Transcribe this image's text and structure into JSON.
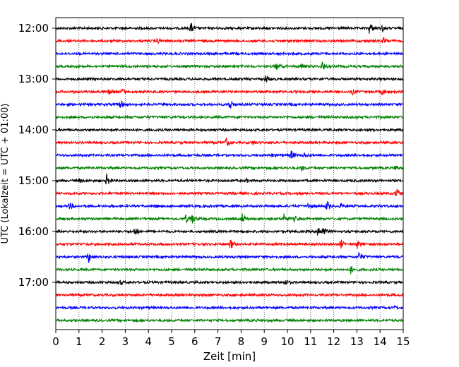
{
  "chart_data": {
    "type": "line",
    "title": "",
    "xlabel": "Zeit  [min]",
    "ylabel": "UTC (Lokalzeit = UTC + 01:00)",
    "xlim": [
      0,
      15
    ],
    "x_ticks": [
      0,
      1,
      2,
      3,
      4,
      5,
      6,
      7,
      8,
      9,
      10,
      11,
      12,
      13,
      14,
      15
    ],
    "x_tick_labels": [
      "0",
      "1",
      "2",
      "3",
      "4",
      "5",
      "6",
      "7",
      "8",
      "9",
      "10",
      "11",
      "12",
      "13",
      "14",
      "15"
    ],
    "y_tick_labels": [
      "12:00",
      "13:00",
      "14:00",
      "15:00",
      "16:00",
      "17:00"
    ],
    "y_tick_traces": [
      0,
      4,
      8,
      12,
      16,
      20
    ],
    "grid": "vertical-dotted",
    "colors": [
      "#000000",
      "#ff0000",
      "#0000ff",
      "#008000"
    ],
    "traces": [
      {
        "start": "12:00",
        "color": "#000000",
        "events": [
          {
            "t": 5.82,
            "amp": 1.0
          },
          {
            "t": 13.55,
            "amp": 1.1
          },
          {
            "t": 14.1,
            "amp": 0.5
          }
        ]
      },
      {
        "start": "12:15",
        "color": "#ff0000",
        "events": [
          {
            "t": 4.4,
            "amp": 0.4
          },
          {
            "t": 14.15,
            "amp": 0.55
          }
        ]
      },
      {
        "start": "12:30",
        "color": "#0000ff",
        "events": []
      },
      {
        "start": "12:45",
        "color": "#008000",
        "events": [
          {
            "t": 9.5,
            "amp": 0.7
          },
          {
            "t": 10.6,
            "amp": 0.4
          },
          {
            "t": 11.5,
            "amp": 0.9
          }
        ]
      },
      {
        "start": "13:00",
        "color": "#000000",
        "events": [
          {
            "t": 9.05,
            "amp": 0.8
          }
        ]
      },
      {
        "start": "13:15",
        "color": "#ff0000",
        "events": [
          {
            "t": 2.3,
            "amp": 0.4
          },
          {
            "t": 2.85,
            "amp": 0.6
          },
          {
            "t": 12.8,
            "amp": 0.4
          },
          {
            "t": 14.1,
            "amp": 0.5
          }
        ]
      },
      {
        "start": "13:30",
        "color": "#0000ff",
        "events": [
          {
            "t": 2.8,
            "amp": 0.8
          },
          {
            "t": 7.5,
            "amp": 1.0
          }
        ]
      },
      {
        "start": "13:45",
        "color": "#008000",
        "events": []
      },
      {
        "start": "14:00",
        "color": "#000000",
        "events": []
      },
      {
        "start": "14:15",
        "color": "#ff0000",
        "events": [
          {
            "t": 7.35,
            "amp": 0.8
          },
          {
            "t": 8.5,
            "amp": 0.3
          }
        ]
      },
      {
        "start": "14:30",
        "color": "#0000ff",
        "events": [
          {
            "t": 9.3,
            "amp": 0.3
          },
          {
            "t": 10.15,
            "amp": 0.9
          },
          {
            "t": 10.7,
            "amp": 0.5
          }
        ]
      },
      {
        "start": "14:45",
        "color": "#008000",
        "events": [
          {
            "t": 10.6,
            "amp": 0.4
          },
          {
            "t": 14.65,
            "amp": 0.5
          }
        ]
      },
      {
        "start": "15:00",
        "color": "#000000",
        "events": [
          {
            "t": 1.0,
            "amp": 0.3
          },
          {
            "t": 2.2,
            "amp": 1.0
          },
          {
            "t": 8.2,
            "amp": 0.3
          }
        ]
      },
      {
        "start": "15:15",
        "color": "#ff0000",
        "events": [
          {
            "t": 14.7,
            "amp": 0.9
          }
        ]
      },
      {
        "start": "15:30",
        "color": "#0000ff",
        "events": [
          {
            "t": 0.6,
            "amp": 0.6
          },
          {
            "t": 4.3,
            "amp": 0.3
          },
          {
            "t": 10.9,
            "amp": 0.5
          },
          {
            "t": 11.7,
            "amp": 0.9
          },
          {
            "t": 12.3,
            "amp": 0.4
          }
        ]
      },
      {
        "start": "15:45",
        "color": "#008000",
        "events": [
          {
            "t": 5.6,
            "amp": 0.7
          },
          {
            "t": 5.85,
            "amp": 1.1
          },
          {
            "t": 8.05,
            "amp": 0.8
          },
          {
            "t": 9.85,
            "amp": 0.9
          },
          {
            "t": 10.3,
            "amp": 0.5
          }
        ]
      },
      {
        "start": "16:00",
        "color": "#000000",
        "events": [
          {
            "t": 3.4,
            "amp": 0.8
          },
          {
            "t": 11.3,
            "amp": 1.2
          },
          {
            "t": 11.55,
            "amp": 0.9
          }
        ]
      },
      {
        "start": "16:15",
        "color": "#ff0000",
        "events": [
          {
            "t": 7.55,
            "amp": 0.9
          },
          {
            "t": 12.3,
            "amp": 0.8
          },
          {
            "t": 13.0,
            "amp": 0.7
          }
        ]
      },
      {
        "start": "16:30",
        "color": "#0000ff",
        "events": [
          {
            "t": 1.4,
            "amp": 1.0
          },
          {
            "t": 13.1,
            "amp": 0.9
          }
        ]
      },
      {
        "start": "16:45",
        "color": "#008000",
        "events": [
          {
            "t": 12.7,
            "amp": 0.9
          }
        ]
      },
      {
        "start": "17:00",
        "color": "#000000",
        "events": [
          {
            "t": 2.75,
            "amp": 0.4
          },
          {
            "t": 9.9,
            "amp": 0.4
          }
        ]
      },
      {
        "start": "17:15",
        "color": "#ff0000",
        "events": []
      },
      {
        "start": "17:30",
        "color": "#0000ff",
        "events": [
          {
            "t": 14.6,
            "amp": 0.3
          }
        ]
      },
      {
        "start": "17:45",
        "color": "#008000",
        "events": []
      }
    ]
  }
}
